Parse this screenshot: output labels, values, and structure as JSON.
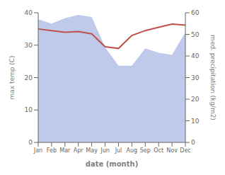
{
  "chart_data": {
    "type": "line",
    "categories": [
      "Jan",
      "Feb",
      "Mar",
      "Apr",
      "May",
      "Jun",
      "Jul",
      "Aug",
      "Sep",
      "Oct",
      "Nov",
      "Dec"
    ],
    "series": [
      {
        "type": "area",
        "axis": "y2",
        "color": "#bfc9ea",
        "values": [
          57.0,
          55.0,
          57.5,
          59.0,
          58.0,
          44.0,
          35.5,
          35.5,
          43.5,
          41.5,
          40.5,
          51.0
        ]
      },
      {
        "type": "line",
        "color": "#c0504d",
        "values": [
          35.0,
          34.5,
          34.0,
          34.2,
          33.5,
          29.5,
          29.0,
          33.0,
          34.5,
          35.5,
          36.5,
          36.2
        ]
      }
    ],
    "xlabel": "date (month)",
    "ylabel": "max temp (C)",
    "y2label": "med. precipitation (kg/m2)",
    "ylim": [
      0,
      40
    ],
    "yticks": [
      0,
      10,
      20,
      30,
      40
    ],
    "y2lim": [
      0,
      60
    ],
    "y2ticks": [
      0,
      10,
      20,
      30,
      40,
      50,
      60
    ],
    "grid": false
  }
}
